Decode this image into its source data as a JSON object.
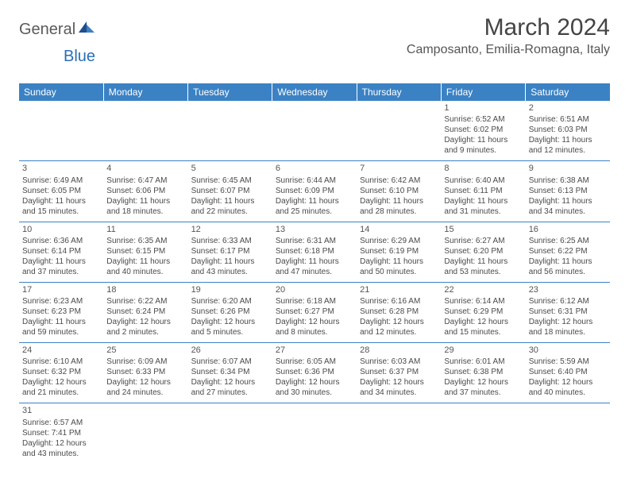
{
  "logo": {
    "general": "General",
    "blue": "Blue"
  },
  "title": "March 2024",
  "location": "Camposanto, Emilia-Romagna, Italy",
  "colors": {
    "header_bg": "#3b82c4",
    "header_text": "#ffffff",
    "grid_line": "#3b82c4",
    "text": "#4a4a4a",
    "logo_gray": "#5a5a5a",
    "logo_blue": "#2a6fb5"
  },
  "day_headers": [
    "Sunday",
    "Monday",
    "Tuesday",
    "Wednesday",
    "Thursday",
    "Friday",
    "Saturday"
  ],
  "weeks": [
    [
      null,
      null,
      null,
      null,
      null,
      {
        "n": "1",
        "sr": "Sunrise: 6:52 AM",
        "ss": "Sunset: 6:02 PM",
        "d1": "Daylight: 11 hours",
        "d2": "and 9 minutes."
      },
      {
        "n": "2",
        "sr": "Sunrise: 6:51 AM",
        "ss": "Sunset: 6:03 PM",
        "d1": "Daylight: 11 hours",
        "d2": "and 12 minutes."
      }
    ],
    [
      {
        "n": "3",
        "sr": "Sunrise: 6:49 AM",
        "ss": "Sunset: 6:05 PM",
        "d1": "Daylight: 11 hours",
        "d2": "and 15 minutes."
      },
      {
        "n": "4",
        "sr": "Sunrise: 6:47 AM",
        "ss": "Sunset: 6:06 PM",
        "d1": "Daylight: 11 hours",
        "d2": "and 18 minutes."
      },
      {
        "n": "5",
        "sr": "Sunrise: 6:45 AM",
        "ss": "Sunset: 6:07 PM",
        "d1": "Daylight: 11 hours",
        "d2": "and 22 minutes."
      },
      {
        "n": "6",
        "sr": "Sunrise: 6:44 AM",
        "ss": "Sunset: 6:09 PM",
        "d1": "Daylight: 11 hours",
        "d2": "and 25 minutes."
      },
      {
        "n": "7",
        "sr": "Sunrise: 6:42 AM",
        "ss": "Sunset: 6:10 PM",
        "d1": "Daylight: 11 hours",
        "d2": "and 28 minutes."
      },
      {
        "n": "8",
        "sr": "Sunrise: 6:40 AM",
        "ss": "Sunset: 6:11 PM",
        "d1": "Daylight: 11 hours",
        "d2": "and 31 minutes."
      },
      {
        "n": "9",
        "sr": "Sunrise: 6:38 AM",
        "ss": "Sunset: 6:13 PM",
        "d1": "Daylight: 11 hours",
        "d2": "and 34 minutes."
      }
    ],
    [
      {
        "n": "10",
        "sr": "Sunrise: 6:36 AM",
        "ss": "Sunset: 6:14 PM",
        "d1": "Daylight: 11 hours",
        "d2": "and 37 minutes."
      },
      {
        "n": "11",
        "sr": "Sunrise: 6:35 AM",
        "ss": "Sunset: 6:15 PM",
        "d1": "Daylight: 11 hours",
        "d2": "and 40 minutes."
      },
      {
        "n": "12",
        "sr": "Sunrise: 6:33 AM",
        "ss": "Sunset: 6:17 PM",
        "d1": "Daylight: 11 hours",
        "d2": "and 43 minutes."
      },
      {
        "n": "13",
        "sr": "Sunrise: 6:31 AM",
        "ss": "Sunset: 6:18 PM",
        "d1": "Daylight: 11 hours",
        "d2": "and 47 minutes."
      },
      {
        "n": "14",
        "sr": "Sunrise: 6:29 AM",
        "ss": "Sunset: 6:19 PM",
        "d1": "Daylight: 11 hours",
        "d2": "and 50 minutes."
      },
      {
        "n": "15",
        "sr": "Sunrise: 6:27 AM",
        "ss": "Sunset: 6:20 PM",
        "d1": "Daylight: 11 hours",
        "d2": "and 53 minutes."
      },
      {
        "n": "16",
        "sr": "Sunrise: 6:25 AM",
        "ss": "Sunset: 6:22 PM",
        "d1": "Daylight: 11 hours",
        "d2": "and 56 minutes."
      }
    ],
    [
      {
        "n": "17",
        "sr": "Sunrise: 6:23 AM",
        "ss": "Sunset: 6:23 PM",
        "d1": "Daylight: 11 hours",
        "d2": "and 59 minutes."
      },
      {
        "n": "18",
        "sr": "Sunrise: 6:22 AM",
        "ss": "Sunset: 6:24 PM",
        "d1": "Daylight: 12 hours",
        "d2": "and 2 minutes."
      },
      {
        "n": "19",
        "sr": "Sunrise: 6:20 AM",
        "ss": "Sunset: 6:26 PM",
        "d1": "Daylight: 12 hours",
        "d2": "and 5 minutes."
      },
      {
        "n": "20",
        "sr": "Sunrise: 6:18 AM",
        "ss": "Sunset: 6:27 PM",
        "d1": "Daylight: 12 hours",
        "d2": "and 8 minutes."
      },
      {
        "n": "21",
        "sr": "Sunrise: 6:16 AM",
        "ss": "Sunset: 6:28 PM",
        "d1": "Daylight: 12 hours",
        "d2": "and 12 minutes."
      },
      {
        "n": "22",
        "sr": "Sunrise: 6:14 AM",
        "ss": "Sunset: 6:29 PM",
        "d1": "Daylight: 12 hours",
        "d2": "and 15 minutes."
      },
      {
        "n": "23",
        "sr": "Sunrise: 6:12 AM",
        "ss": "Sunset: 6:31 PM",
        "d1": "Daylight: 12 hours",
        "d2": "and 18 minutes."
      }
    ],
    [
      {
        "n": "24",
        "sr": "Sunrise: 6:10 AM",
        "ss": "Sunset: 6:32 PM",
        "d1": "Daylight: 12 hours",
        "d2": "and 21 minutes."
      },
      {
        "n": "25",
        "sr": "Sunrise: 6:09 AM",
        "ss": "Sunset: 6:33 PM",
        "d1": "Daylight: 12 hours",
        "d2": "and 24 minutes."
      },
      {
        "n": "26",
        "sr": "Sunrise: 6:07 AM",
        "ss": "Sunset: 6:34 PM",
        "d1": "Daylight: 12 hours",
        "d2": "and 27 minutes."
      },
      {
        "n": "27",
        "sr": "Sunrise: 6:05 AM",
        "ss": "Sunset: 6:36 PM",
        "d1": "Daylight: 12 hours",
        "d2": "and 30 minutes."
      },
      {
        "n": "28",
        "sr": "Sunrise: 6:03 AM",
        "ss": "Sunset: 6:37 PM",
        "d1": "Daylight: 12 hours",
        "d2": "and 34 minutes."
      },
      {
        "n": "29",
        "sr": "Sunrise: 6:01 AM",
        "ss": "Sunset: 6:38 PM",
        "d1": "Daylight: 12 hours",
        "d2": "and 37 minutes."
      },
      {
        "n": "30",
        "sr": "Sunrise: 5:59 AM",
        "ss": "Sunset: 6:40 PM",
        "d1": "Daylight: 12 hours",
        "d2": "and 40 minutes."
      }
    ],
    [
      {
        "n": "31",
        "sr": "Sunrise: 6:57 AM",
        "ss": "Sunset: 7:41 PM",
        "d1": "Daylight: 12 hours",
        "d2": "and 43 minutes."
      },
      null,
      null,
      null,
      null,
      null,
      null
    ]
  ]
}
